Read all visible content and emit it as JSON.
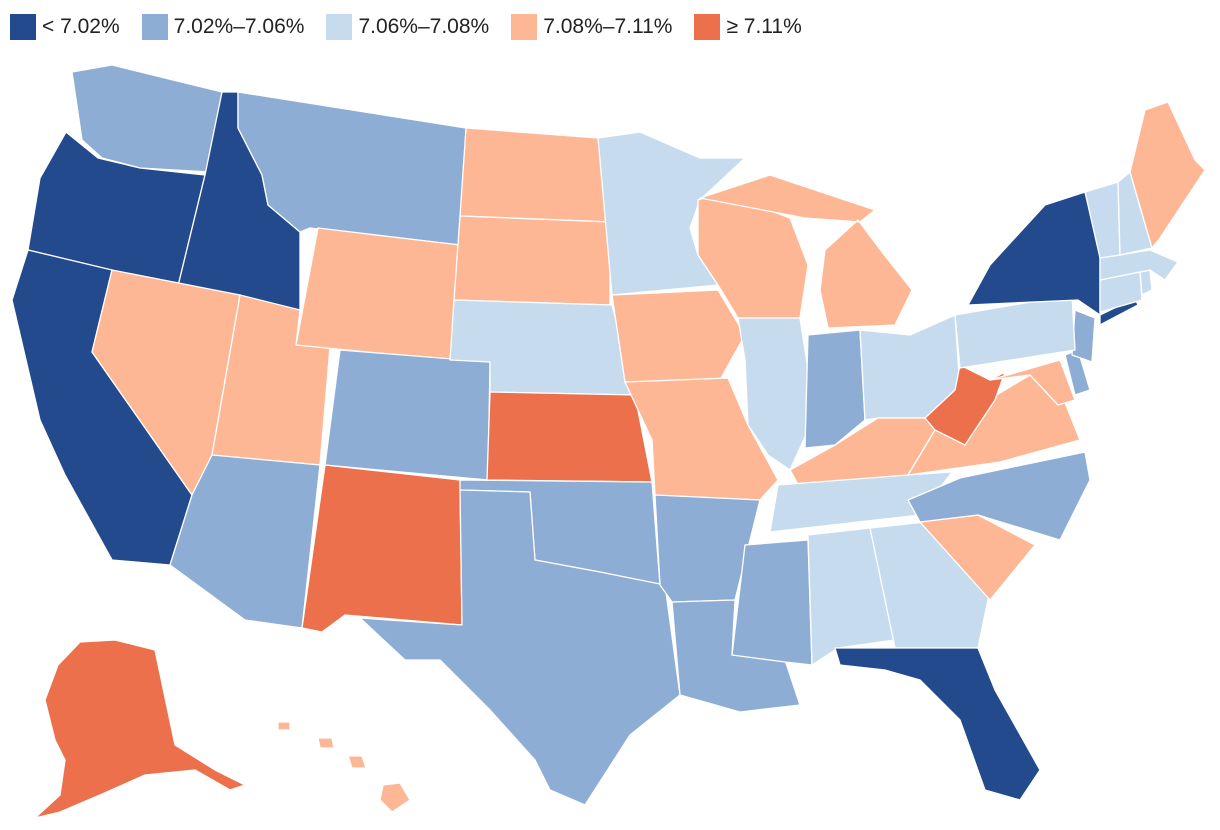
{
  "legend": [
    {
      "label": "< 7.02%",
      "color": "#234a8d"
    },
    {
      "label": "7.02%–7.06%",
      "color": "#8dadd5"
    },
    {
      "label": "7.06%–7.08%",
      "color": "#c6dcee"
    },
    {
      "label": "7.08%–7.11%",
      "color": "#fdb794"
    },
    {
      "label": "≥ 7.11%",
      "color": "#ec704b"
    }
  ],
  "states": {
    "WA": 1,
    "OR": 0,
    "CA": 0,
    "ID": 0,
    "NV": 3,
    "UT": 3,
    "AZ": 1,
    "MT": 1,
    "WY": 3,
    "CO": 1,
    "NM": 4,
    "ND": 3,
    "SD": 3,
    "NE": 2,
    "KS": 4,
    "OK": 1,
    "TX": 1,
    "MN": 2,
    "IA": 3,
    "MO": 3,
    "AR": 1,
    "LA": 1,
    "WI": 3,
    "IL": 2,
    "MI": 3,
    "IN": 1,
    "OH": 2,
    "KY": 3,
    "TN": 2,
    "MS": 1,
    "AL": 2,
    "GA": 2,
    "FL": 0,
    "SC": 3,
    "NC": 1,
    "VA": 3,
    "WV": 4,
    "MD": 3,
    "DE": 1,
    "NJ": 1,
    "PA": 2,
    "NY": 0,
    "CT": 2,
    "RI": 2,
    "MA": 2,
    "VT": 2,
    "NH": 2,
    "ME": 3,
    "AK": 4,
    "HI": 3
  }
}
